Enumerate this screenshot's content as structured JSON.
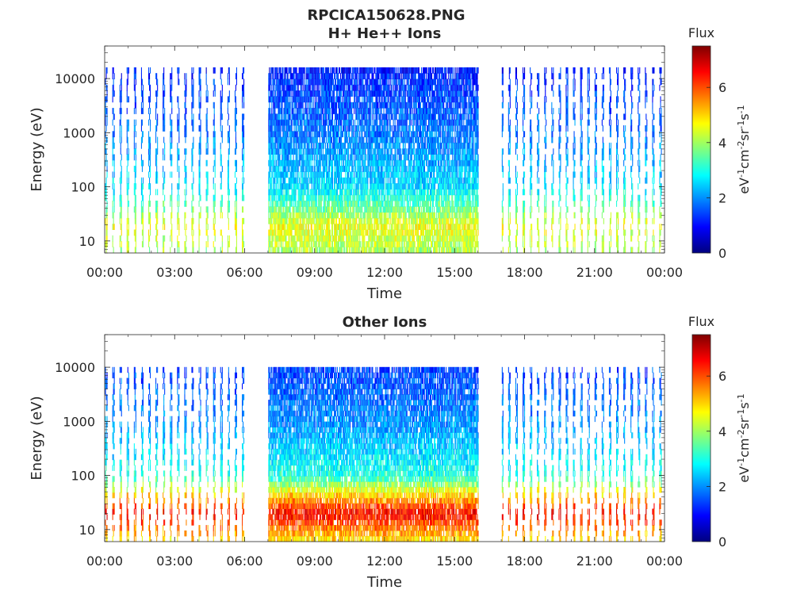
{
  "figure": {
    "title": "RPCICA150628.PNG",
    "colormap": [
      "#00007f",
      "#0000ff",
      "#007fff",
      "#00ffff",
      "#7fff7f",
      "#ffff00",
      "#ff7f00",
      "#ff0000",
      "#7f0000"
    ]
  },
  "chart_data": [
    {
      "type": "heatmap",
      "title": "H+ He++ Ions",
      "xlabel": "Time",
      "ylabel": "Energy (eV)",
      "x_ticks": [
        "00:00",
        "03:00",
        "06:00",
        "09:00",
        "12:00",
        "15:00",
        "18:00",
        "21:00",
        "00:00"
      ],
      "xlim_hours": [
        0,
        24
      ],
      "y_scale": "log",
      "y_ticks": [
        10,
        100,
        1000,
        10000
      ],
      "y_tick_labels": [
        "10",
        "100",
        "1000",
        "10000"
      ],
      "ylim": [
        6,
        40000
      ],
      "colorbar": {
        "title": "Flux",
        "label": "eV-1cm-2sr-1s-1",
        "ticks": [
          0,
          2,
          4,
          6
        ],
        "tick_labels": [
          "0",
          "2",
          "4",
          "6"
        ],
        "range": [
          0,
          7.5
        ]
      },
      "data_gaps_hours": [
        [
          6.0,
          7.0
        ],
        [
          16.0,
          17.0
        ]
      ],
      "dense_interval_hours": [
        7.0,
        16.0
      ],
      "band_profile": [
        {
          "energy_eV": 6,
          "flux": 4.0
        },
        {
          "energy_eV": 20,
          "flux": 4.6
        },
        {
          "energy_eV": 40,
          "flux": 3.6
        },
        {
          "energy_eV": 100,
          "flux": 2.6
        },
        {
          "energy_eV": 1000,
          "flux": 1.8
        },
        {
          "energy_eV": 10000,
          "flux": 1.3
        },
        {
          "energy_eV": 16000,
          "flux": 1.0
        }
      ]
    },
    {
      "type": "heatmap",
      "title": "Other Ions",
      "xlabel": "Time",
      "ylabel": "Energy (eV)",
      "x_ticks": [
        "00:00",
        "03:00",
        "06:00",
        "09:00",
        "12:00",
        "15:00",
        "18:00",
        "21:00",
        "00:00"
      ],
      "xlim_hours": [
        0,
        24
      ],
      "y_scale": "log",
      "y_ticks": [
        10,
        100,
        1000,
        10000
      ],
      "y_tick_labels": [
        "10",
        "100",
        "1000",
        "10000"
      ],
      "ylim": [
        6,
        40000
      ],
      "colorbar": {
        "title": "Flux",
        "label": "eV-1cm-2sr-1s-1",
        "ticks": [
          0,
          2,
          4,
          6
        ],
        "tick_labels": [
          "0",
          "2",
          "4",
          "6"
        ],
        "range": [
          0,
          7.5
        ]
      },
      "data_gaps_hours": [
        [
          6.0,
          7.0
        ],
        [
          16.0,
          17.0
        ]
      ],
      "dense_interval_hours": [
        7.0,
        16.0
      ],
      "band_profile": [
        {
          "energy_eV": 6,
          "flux": 4.8
        },
        {
          "energy_eV": 20,
          "flux": 6.6
        },
        {
          "energy_eV": 40,
          "flux": 5.2
        },
        {
          "energy_eV": 100,
          "flux": 3.0
        },
        {
          "energy_eV": 1000,
          "flux": 2.0
        },
        {
          "energy_eV": 10000,
          "flux": 1.4
        }
      ]
    }
  ]
}
